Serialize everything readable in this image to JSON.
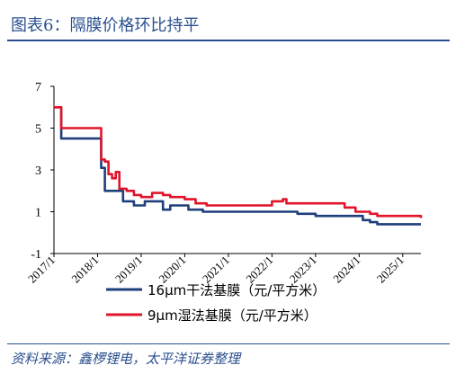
{
  "header": {
    "title": "图表6：隔膜价格环比持平"
  },
  "footer": {
    "source": "资料来源：鑫椤锂电，太平洋证券整理"
  },
  "chart_data": {
    "type": "line",
    "x_ticks": [
      "2017/1",
      "2018/1",
      "2019/1",
      "2020/1",
      "2021/1",
      "2022/1",
      "2023/1",
      "2024/1",
      "2025/1"
    ],
    "y_ticks": [
      "-1",
      "1",
      "3",
      "5",
      "7"
    ],
    "ylim": [
      -1,
      7
    ],
    "xlim": [
      "2017/1",
      "2025/6"
    ],
    "colors": {
      "dry": "#1f3f7a",
      "wet": "#e0142a"
    },
    "series": [
      {
        "name": "16μm干法基膜（元/平方米）",
        "key": "dry",
        "points": [
          [
            "2017/1",
            6.0
          ],
          [
            "2017/2",
            6.0
          ],
          [
            "2017/3",
            4.5
          ],
          [
            "2017/6",
            4.5
          ],
          [
            "2018/1",
            4.5
          ],
          [
            "2018/2",
            3.1
          ],
          [
            "2018/3",
            2.0
          ],
          [
            "2018/7",
            2.0
          ],
          [
            "2018/8",
            1.5
          ],
          [
            "2018/10",
            1.5
          ],
          [
            "2018/11",
            1.3
          ],
          [
            "2019/1",
            1.3
          ],
          [
            "2019/2",
            1.5
          ],
          [
            "2019/6",
            1.5
          ],
          [
            "2019/7",
            1.1
          ],
          [
            "2019/9",
            1.3
          ],
          [
            "2020/1",
            1.3
          ],
          [
            "2020/2",
            1.1
          ],
          [
            "2020/5",
            1.1
          ],
          [
            "2020/6",
            1.0
          ],
          [
            "2022/1",
            1.0
          ],
          [
            "2022/6",
            1.0
          ],
          [
            "2022/8",
            0.9
          ],
          [
            "2022/12",
            0.9
          ],
          [
            "2023/1",
            0.8
          ],
          [
            "2023/12",
            0.8
          ],
          [
            "2024/2",
            0.6
          ],
          [
            "2024/4",
            0.5
          ],
          [
            "2024/6",
            0.4
          ],
          [
            "2025/1",
            0.4
          ],
          [
            "2025/6",
            0.4
          ]
        ]
      },
      {
        "name": "9μm湿法基膜（元/平方米）",
        "key": "wet",
        "points": [
          [
            "2017/1",
            6.0
          ],
          [
            "2017/2",
            6.0
          ],
          [
            "2017/3",
            5.0
          ],
          [
            "2018/1",
            5.0
          ],
          [
            "2018/2",
            3.5
          ],
          [
            "2018/3",
            3.4
          ],
          [
            "2018/4",
            2.8
          ],
          [
            "2018/5",
            2.6
          ],
          [
            "2018/6",
            2.9
          ],
          [
            "2018/7",
            2.1
          ],
          [
            "2018/9",
            2.0
          ],
          [
            "2018/11",
            1.8
          ],
          [
            "2019/1",
            1.7
          ],
          [
            "2019/3",
            1.7
          ],
          [
            "2019/4",
            1.9
          ],
          [
            "2019/7",
            1.8
          ],
          [
            "2019/9",
            1.7
          ],
          [
            "2020/1",
            1.6
          ],
          [
            "2020/4",
            1.4
          ],
          [
            "2020/7",
            1.3
          ],
          [
            "2021/1",
            1.3
          ],
          [
            "2021/10",
            1.3
          ],
          [
            "2022/1",
            1.5
          ],
          [
            "2022/4",
            1.6
          ],
          [
            "2022/5",
            1.4
          ],
          [
            "2023/1",
            1.4
          ],
          [
            "2023/6",
            1.4
          ],
          [
            "2023/9",
            1.2
          ],
          [
            "2023/12",
            1.0
          ],
          [
            "2024/4",
            0.9
          ],
          [
            "2024/6",
            0.8
          ],
          [
            "2025/1",
            0.8
          ],
          [
            "2025/6",
            0.7
          ]
        ]
      }
    ]
  }
}
